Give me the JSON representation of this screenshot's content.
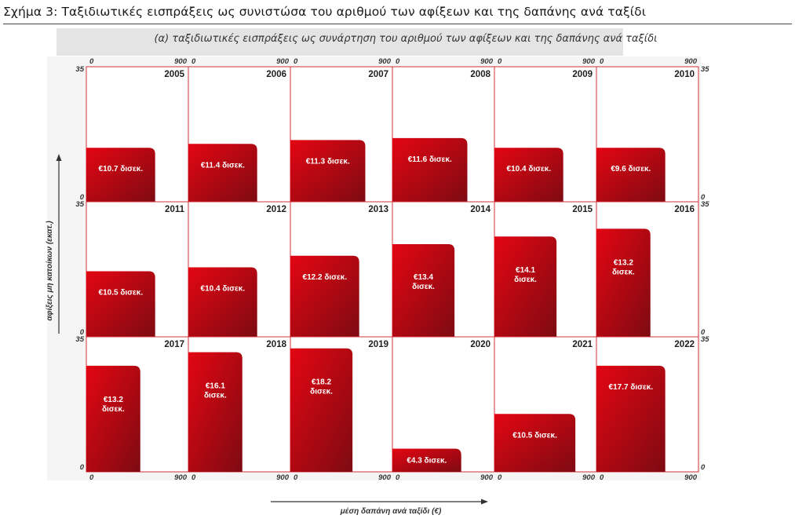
{
  "figure": {
    "title": "Σχήμα 3:  Ταξιδιωτικές εισπράξεις ως συνιστώσα του αριθμού των αφίξεων και της δαπάνης ανά ταξίδι",
    "subtitle": "(α) ταξιδιωτικές εισπράξεις ως συνάρτηση του αριθμού των αφίξεων και της δαπάνης ανά ταξίδι"
  },
  "colors": {
    "bar_light": "#e30613",
    "bar_dark": "#7e0a12",
    "grid": "#d3303a"
  },
  "chart_data": {
    "type": "bar",
    "xlabel": "μέση δαπάνη ανά ταξίδι (€)",
    "ylabel": "αφίξεις μη κατοίκων (εκατ.)",
    "xlim": [
      0,
      900
    ],
    "ylim": [
      0,
      35
    ],
    "x_ticks": [
      "0",
      "900"
    ],
    "y_ticks": [
      "0",
      "35"
    ],
    "panels": [
      {
        "year": "2005",
        "spend": 607,
        "arrivals": 14.0,
        "label": "€10.7 δισεκ."
      },
      {
        "year": "2006",
        "spend": 607,
        "arrivals": 15.0,
        "label": "€11.4 δισεκ."
      },
      {
        "year": "2007",
        "spend": 661,
        "arrivals": 16.0,
        "label": "€11.3 δισεκ."
      },
      {
        "year": "2008",
        "spend": 661,
        "arrivals": 16.5,
        "label": "€11.6 δισεκ."
      },
      {
        "year": "2009",
        "spend": 607,
        "arrivals": 14.0,
        "label": "€10.4 δισεκ."
      },
      {
        "year": "2010",
        "spend": 607,
        "arrivals": 14.0,
        "label": "€9.6 δισεκ."
      },
      {
        "year": "2011",
        "spend": 607,
        "arrivals": 17.0,
        "label": "€10.5 δισεκ."
      },
      {
        "year": "2012",
        "spend": 607,
        "arrivals": 18.0,
        "label": "€10.4 δισεκ."
      },
      {
        "year": "2013",
        "spend": 607,
        "arrivals": 21.0,
        "label": "€12.2 δισεκ."
      },
      {
        "year": "2014",
        "spend": 548,
        "arrivals": 24.0,
        "label": "€13.4 δισεκ."
      },
      {
        "year": "2015",
        "spend": 548,
        "arrivals": 26.0,
        "label": "€14.1 δισεκ."
      },
      {
        "year": "2016",
        "spend": 476,
        "arrivals": 28.0,
        "label": "€13.2 δισεκ."
      },
      {
        "year": "2017",
        "spend": 476,
        "arrivals": 27.5,
        "label": "€13.2 δισεκ."
      },
      {
        "year": "2018",
        "spend": 476,
        "arrivals": 31.0,
        "label": "€16.1 δισεκ."
      },
      {
        "year": "2019",
        "spend": 548,
        "arrivals": 32.0,
        "label": "€18.2 δισεκ."
      },
      {
        "year": "2020",
        "spend": 607,
        "arrivals": 6.0,
        "label": "€4.3 δισεκ."
      },
      {
        "year": "2021",
        "spend": 714,
        "arrivals": 15.0,
        "label": "€10.5 δισεκ."
      },
      {
        "year": "2022",
        "spend": 607,
        "arrivals": 27.5,
        "label": "€17.7 δισεκ."
      }
    ]
  }
}
